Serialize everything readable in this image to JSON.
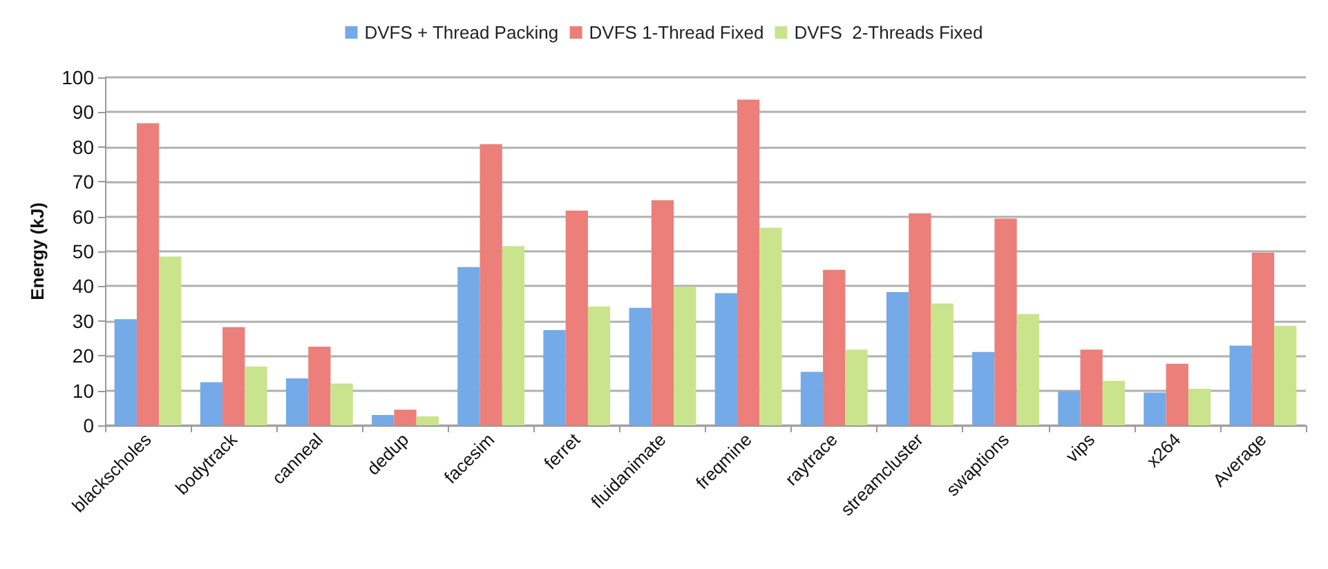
{
  "chart_data": {
    "type": "bar",
    "ylabel": "Energy (kJ)",
    "categories": [
      "blackscholes",
      "bodytrack",
      "canneal",
      "dedup",
      "facesim",
      "ferret",
      "fluidanimate",
      "freqmine",
      "raytrace",
      "streamcluster",
      "swaptions",
      "vips",
      "x264",
      "Average"
    ],
    "series": [
      {
        "name": "DVFS + Thread Packing",
        "color": "#74aae8",
        "values": [
          30.5,
          12.4,
          13.5,
          3.0,
          45.5,
          27.4,
          33.8,
          38.0,
          15.4,
          38.3,
          21.1,
          9.8,
          9.4,
          22.9
        ]
      },
      {
        "name": "DVFS 1-Thread Fixed",
        "color": "#ec7f79",
        "values": [
          86.8,
          28.2,
          22.6,
          4.5,
          80.8,
          61.7,
          64.7,
          93.6,
          44.7,
          60.9,
          59.4,
          21.8,
          17.7,
          49.6
        ]
      },
      {
        "name": "DVFS  2-Threads Fixed",
        "color": "#c9e48c",
        "values": [
          48.5,
          16.9,
          12.0,
          2.6,
          51.5,
          34.2,
          39.8,
          56.8,
          21.8,
          35.0,
          32.0,
          12.8,
          10.5,
          28.6
        ]
      }
    ],
    "ylim": [
      0,
      100
    ],
    "yticks": [
      0,
      10,
      20,
      30,
      40,
      50,
      60,
      70,
      80,
      90,
      100
    ],
    "grid": "y",
    "legend": "top"
  }
}
